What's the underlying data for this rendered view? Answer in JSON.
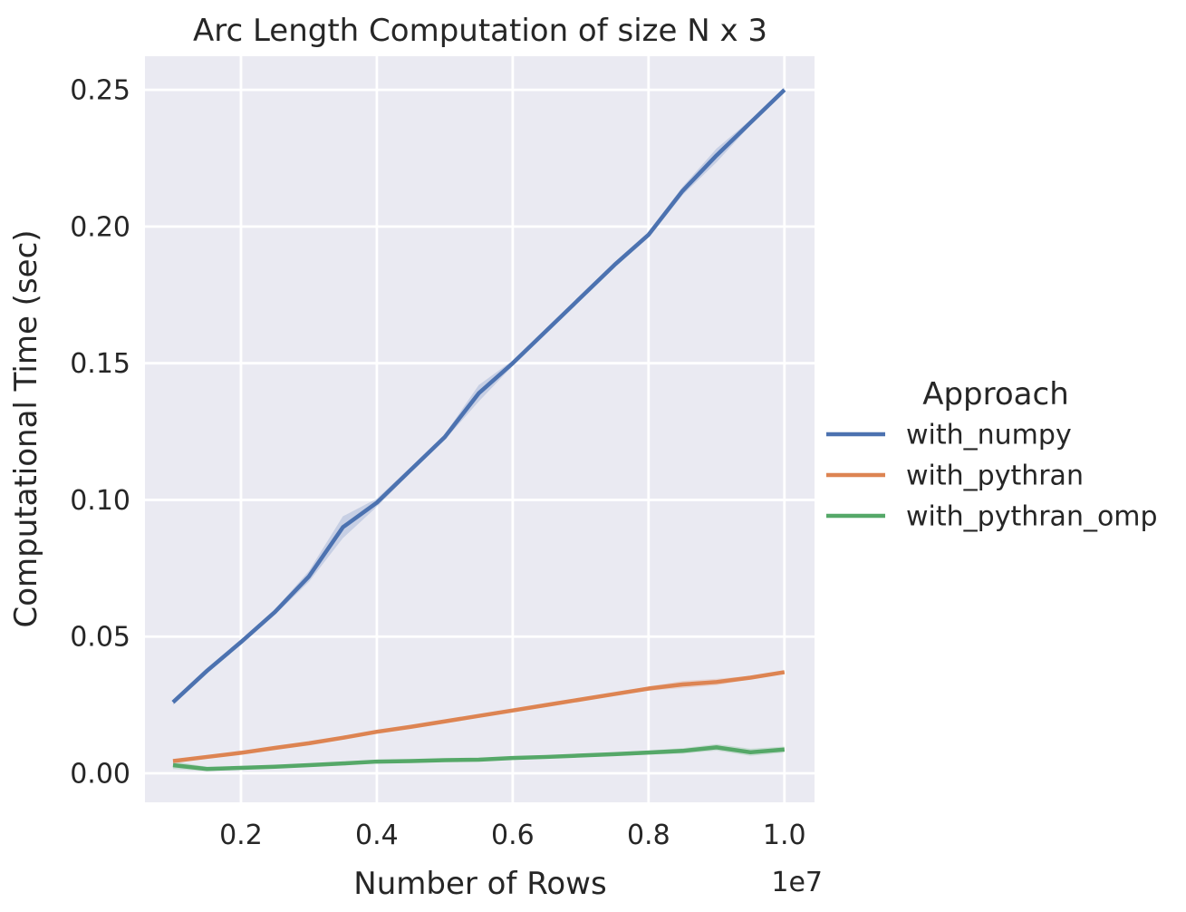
{
  "chart_data": {
    "type": "line",
    "title": "Arc Length Computation of size N x 3",
    "xlabel": "Number of Rows",
    "ylabel": "Computational Time (sec)",
    "x_offset_label": "1e7",
    "x_units": "rows (values shown in multiples of 1e7)",
    "y_units": "seconds",
    "grid": true,
    "plot_bg_color": "#EAEAF2",
    "grid_color": "#FFFFFF",
    "text_color": "#262626",
    "xlim": [
      0.0587,
      1.0443
    ],
    "ylim": [
      -0.0106,
      0.2623
    ],
    "x_ticks": [
      0.2,
      0.4,
      0.6,
      0.8,
      1.0
    ],
    "x_tick_labels": [
      "0.2",
      "0.4",
      "0.6",
      "0.8",
      "1.0"
    ],
    "y_ticks": [
      0.0,
      0.05,
      0.1,
      0.15,
      0.2,
      0.25
    ],
    "y_tick_labels": [
      "0.00",
      "0.05",
      "0.10",
      "0.15",
      "0.20",
      "0.25"
    ],
    "x": [
      0.1,
      0.15,
      0.2,
      0.25,
      0.3,
      0.35,
      0.4,
      0.45,
      0.5,
      0.55,
      0.6,
      0.65,
      0.7,
      0.75,
      0.8,
      0.85,
      0.9,
      0.95,
      1.0
    ],
    "series": [
      {
        "name": "with_numpy",
        "color": "#4C72B0",
        "values": [
          0.026,
          0.0375,
          0.048,
          0.059,
          0.072,
          0.09,
          0.099,
          0.111,
          0.123,
          0.139,
          0.15,
          0.162,
          0.174,
          0.186,
          0.197,
          0.213,
          0.226,
          0.238,
          0.25
        ],
        "ci": [
          0.001,
          0.001,
          0.001,
          0.001,
          0.002,
          0.004,
          0.0015,
          0.001,
          0.001,
          0.003,
          0.001,
          0.001,
          0.001,
          0.001,
          0.001,
          0.0015,
          0.0025,
          0.001,
          0.001
        ]
      },
      {
        "name": "with_pythran",
        "color": "#DD8452",
        "values": [
          0.0045,
          0.006,
          0.0075,
          0.0093,
          0.011,
          0.013,
          0.0152,
          0.017,
          0.019,
          0.021,
          0.023,
          0.025,
          0.027,
          0.029,
          0.031,
          0.0325,
          0.0334,
          0.035,
          0.037
        ],
        "ci": [
          0.0004,
          0.0004,
          0.0004,
          0.0004,
          0.0004,
          0.0004,
          0.0006,
          0.0004,
          0.0004,
          0.0004,
          0.0004,
          0.0004,
          0.0004,
          0.0005,
          0.0008,
          0.0013,
          0.0012,
          0.0006,
          0.0005
        ]
      },
      {
        "name": "with_pythran_omp",
        "color": "#55A868",
        "values": [
          0.003,
          0.0016,
          0.002,
          0.0024,
          0.003,
          0.0036,
          0.0043,
          0.0045,
          0.0048,
          0.005,
          0.0056,
          0.006,
          0.0065,
          0.007,
          0.0076,
          0.0082,
          0.0095,
          0.0077,
          0.0087
        ],
        "ci": [
          0.0014,
          0.0008,
          0.0005,
          0.0005,
          0.0005,
          0.0005,
          0.0006,
          0.0005,
          0.0005,
          0.0005,
          0.0005,
          0.0005,
          0.0006,
          0.0006,
          0.0008,
          0.001,
          0.0012,
          0.0013,
          0.0011
        ]
      }
    ],
    "legend": {
      "title": "Approach",
      "position": "right-outside",
      "entries": [
        "with_numpy",
        "with_pythran",
        "with_pythran_omp"
      ]
    }
  }
}
